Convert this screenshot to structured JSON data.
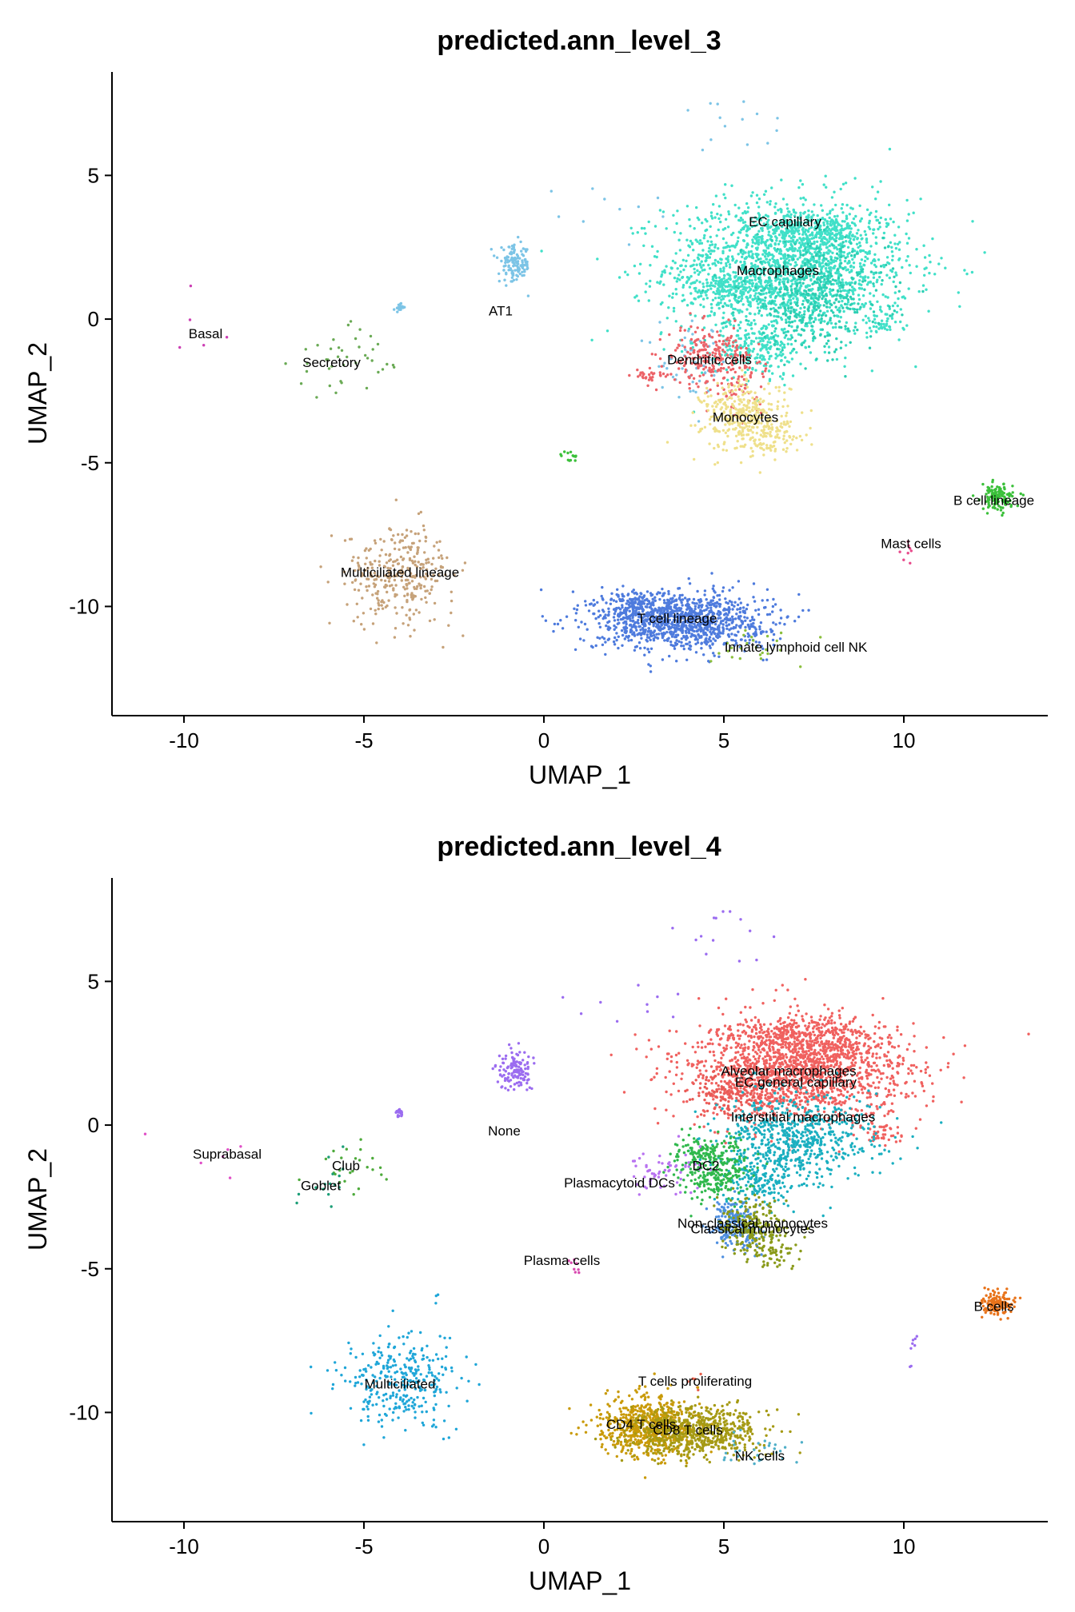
{
  "chart_data": [
    {
      "type": "scatter",
      "title": "predicted.ann_level_3",
      "xlabel": "UMAP_1",
      "ylabel": "UMAP_2",
      "xlim": [
        -12,
        14
      ],
      "ylim": [
        -13.8,
        8.6
      ],
      "x_ticks": [
        -10,
        -5,
        0,
        5,
        10
      ],
      "y_ticks": [
        -10,
        -5,
        0,
        5
      ],
      "grid": false,
      "legend": "none",
      "clusters": [
        {
          "label": "EC capillary",
          "label_x": 6.7,
          "label_y": 3.4,
          "color": "#40E0C8",
          "blobs": [
            {
              "cx": 6.8,
              "cy": 1.8,
              "sx": 1.7,
              "sy": 1.2,
              "n": 1700
            },
            {
              "cx": 7.2,
              "cy": 3.0,
              "sx": 0.8,
              "sy": 0.4,
              "n": 250
            },
            {
              "cx": 5.2,
              "cy": 1.0,
              "sx": 0.7,
              "sy": 0.3,
              "n": 160
            },
            {
              "cx": 6.0,
              "cy": -1.0,
              "sx": 0.6,
              "sy": 0.5,
              "n": 220
            },
            {
              "cx": 9.4,
              "cy": -0.2,
              "sx": 0.3,
              "sy": 0.2,
              "n": 40
            },
            {
              "cx": 8.2,
              "cy": 3.0,
              "sx": 0.35,
              "sy": 0.35,
              "n": 60
            }
          ]
        },
        {
          "label": "Macrophages",
          "label_x": 6.5,
          "label_y": 1.7,
          "color": "#2CCFB3",
          "blobs": [
            {
              "cx": 7.5,
              "cy": 0.8,
              "sx": 1.0,
              "sy": 0.9,
              "n": 450
            }
          ]
        },
        {
          "label": "AT1",
          "label_x": -1.2,
          "label_y": 0.3,
          "color": "#7CC4E6",
          "blobs": [
            {
              "cx": -0.8,
              "cy": 1.9,
              "sx": 0.22,
              "sy": 0.32,
              "n": 130
            },
            {
              "cx": -4.0,
              "cy": 0.4,
              "sx": 0.07,
              "sy": 0.07,
              "n": 18
            },
            {
              "cx": 5.0,
              "cy": 6.8,
              "sx": 1.0,
              "sy": 0.9,
              "n": 14
            },
            {
              "cx": 2.0,
              "cy": 3.9,
              "sx": 1.0,
              "sy": 0.5,
              "n": 10
            },
            {
              "cx": 4.2,
              "cy": -1.5,
              "sx": 0.5,
              "sy": 0.6,
              "n": 60
            }
          ]
        },
        {
          "label": "Dendritic cells",
          "label_x": 4.6,
          "label_y": -1.4,
          "color": "#EC6368",
          "blobs": [
            {
              "cx": 4.6,
              "cy": -1.3,
              "sx": 0.6,
              "sy": 0.5,
              "n": 220
            },
            {
              "cx": 3.0,
              "cy": -2.0,
              "sx": 0.3,
              "sy": 0.1,
              "n": 30
            },
            {
              "cx": 5.5,
              "cy": -2.4,
              "sx": 0.4,
              "sy": 0.5,
              "n": 50
            }
          ]
        },
        {
          "label": "Monocytes",
          "label_x": 5.6,
          "label_y": -3.4,
          "color": "#EFE08B",
          "blobs": [
            {
              "cx": 5.6,
              "cy": -3.4,
              "sx": 0.6,
              "sy": 0.6,
              "n": 380
            },
            {
              "cx": 6.4,
              "cy": -4.2,
              "sx": 0.5,
              "sy": 0.3,
              "n": 60
            }
          ]
        },
        {
          "label": "Basal",
          "label_x": -9.4,
          "label_y": -0.5,
          "color": "#CC3FB4",
          "blobs": [
            {
              "cx": -9.5,
              "cy": -0.5,
              "sx": 0.5,
              "sy": 0.6,
              "n": 5
            }
          ]
        },
        {
          "label": "Secretory",
          "label_x": -5.9,
          "label_y": -1.5,
          "color": "#6AAA55",
          "blobs": [
            {
              "cx": -5.6,
              "cy": -1.5,
              "sx": 0.7,
              "sy": 0.6,
              "n": 40
            }
          ]
        },
        {
          "label": "B cell lineage",
          "label_x": 12.5,
          "label_y": -6.3,
          "color": "#3BC03A",
          "blobs": [
            {
              "cx": 12.6,
              "cy": -6.2,
              "sx": 0.22,
              "sy": 0.22,
              "n": 130
            },
            {
              "cx": 0.7,
              "cy": -4.8,
              "sx": 0.15,
              "sy": 0.1,
              "n": 14
            }
          ]
        },
        {
          "label": "Mast cells",
          "label_x": 10.2,
          "label_y": -7.8,
          "color": "#E84B8C",
          "blobs": [
            {
              "cx": 10.1,
              "cy": -7.9,
              "sx": 0.08,
              "sy": 0.3,
              "n": 8
            }
          ]
        },
        {
          "label": "Multiciliated lineage",
          "label_x": -4.0,
          "label_y": -8.8,
          "color": "#C6A27A",
          "blobs": [
            {
              "cx": -4.0,
              "cy": -8.9,
              "sx": 0.75,
              "sy": 0.85,
              "n": 320
            }
          ]
        },
        {
          "label": "T cell lineage",
          "label_x": 3.7,
          "label_y": -10.4,
          "color": "#4E7BDD",
          "blobs": [
            {
              "cx": 3.8,
              "cy": -10.5,
              "sx": 1.2,
              "sy": 0.5,
              "n": 1100
            },
            {
              "cx": 2.6,
              "cy": -10.0,
              "sx": 0.4,
              "sy": 0.3,
              "n": 150
            }
          ]
        },
        {
          "label": "Innate lymphoid cell NK",
          "label_x": 7.0,
          "label_y": -11.4,
          "color": "#8BBF3C",
          "blobs": [
            {
              "cx": 5.8,
              "cy": -11.4,
              "sx": 0.9,
              "sy": 0.4,
              "n": 25
            }
          ]
        }
      ]
    },
    {
      "type": "scatter",
      "title": "predicted.ann_level_4",
      "xlabel": "UMAP_1",
      "ylabel": "UMAP_2",
      "xlim": [
        -12,
        14
      ],
      "ylim": [
        -13.8,
        8.6
      ],
      "x_ticks": [
        -10,
        -5,
        0,
        5,
        10
      ],
      "y_ticks": [
        -10,
        -5,
        0,
        5
      ],
      "grid": false,
      "legend": "none",
      "clusters": [
        {
          "label": "Alveolar macrophages",
          "label_x": 6.8,
          "label_y": 1.9,
          "color": "#F0615F",
          "blobs": [
            {
              "cx": 7.0,
              "cy": 1.9,
              "sx": 1.6,
              "sy": 0.9,
              "n": 1600
            },
            {
              "cx": 7.0,
              "cy": 3.0,
              "sx": 0.9,
              "sy": 0.4,
              "n": 250
            },
            {
              "cx": 9.4,
              "cy": -0.3,
              "sx": 0.3,
              "sy": 0.2,
              "n": 40
            },
            {
              "cx": 8.4,
              "cy": 2.9,
              "sx": 0.35,
              "sy": 0.35,
              "n": 60
            }
          ]
        },
        {
          "label": "EC general capillary",
          "label_x": 7.0,
          "label_y": 1.5,
          "color": "#E85A55",
          "blobs": [
            {
              "cx": 5.4,
              "cy": 1.2,
              "sx": 0.7,
              "sy": 0.4,
              "n": 150
            }
          ]
        },
        {
          "label": "Interstitial macrophages",
          "label_x": 7.2,
          "label_y": 0.3,
          "color": "#1AAFC0",
          "blobs": [
            {
              "cx": 7.0,
              "cy": -0.5,
              "sx": 1.1,
              "sy": 0.8,
              "n": 650
            },
            {
              "cx": 6.0,
              "cy": -2.0,
              "sx": 0.5,
              "sy": 0.5,
              "n": 150
            }
          ]
        },
        {
          "label": "None",
          "label_x": -1.1,
          "label_y": -0.2,
          "color": "#9B6CF0",
          "blobs": [
            {
              "cx": -0.8,
              "cy": 1.9,
              "sx": 0.22,
              "sy": 0.32,
              "n": 130
            },
            {
              "cx": -4.0,
              "cy": 0.4,
              "sx": 0.07,
              "sy": 0.07,
              "n": 18
            },
            {
              "cx": 5.0,
              "cy": 6.8,
              "sx": 1.0,
              "sy": 0.9,
              "n": 14
            },
            {
              "cx": 2.0,
              "cy": 3.9,
              "sx": 1.0,
              "sy": 0.5,
              "n": 10
            },
            {
              "cx": 10.2,
              "cy": -7.9,
              "sx": 0.1,
              "sy": 0.3,
              "n": 8
            }
          ]
        },
        {
          "label": "DC2",
          "label_x": 4.5,
          "label_y": -1.4,
          "color": "#2FB84C",
          "blobs": [
            {
              "cx": 4.8,
              "cy": -1.6,
              "sx": 0.5,
              "sy": 0.6,
              "n": 260
            },
            {
              "cx": 4.2,
              "cy": -1.0,
              "sx": 0.3,
              "sy": 0.3,
              "n": 60
            }
          ]
        },
        {
          "label": "Plasmacytoid DCs",
          "label_x": 2.1,
          "label_y": -2.0,
          "color": "#B872F0",
          "blobs": [
            {
              "cx": 3.3,
              "cy": -1.6,
              "sx": 0.5,
              "sy": 0.4,
              "n": 60
            }
          ]
        },
        {
          "label": "Non-classical monocytes",
          "label_x": 5.8,
          "label_y": -3.4,
          "color": "#4E8FE0",
          "blobs": [
            {
              "cx": 5.3,
              "cy": -3.5,
              "sx": 0.35,
              "sy": 0.45,
              "n": 220
            }
          ]
        },
        {
          "label": "Classical monocytes",
          "label_x": 5.8,
          "label_y": -3.6,
          "color": "#8A9A1A",
          "blobs": [
            {
              "cx": 5.8,
              "cy": -3.6,
              "sx": 0.45,
              "sy": 0.5,
              "n": 220
            },
            {
              "cx": 6.4,
              "cy": -4.4,
              "sx": 0.4,
              "sy": 0.3,
              "n": 50
            }
          ]
        },
        {
          "label": "Suprabasal",
          "label_x": -8.8,
          "label_y": -1.0,
          "color": "#E04FC7",
          "blobs": [
            {
              "cx": -8.5,
              "cy": -0.8,
              "sx": 1.0,
              "sy": 0.6,
              "n": 6
            }
          ]
        },
        {
          "label": "Club",
          "label_x": -5.5,
          "label_y": -1.4,
          "color": "#4DAA3B",
          "blobs": [
            {
              "cx": -5.4,
              "cy": -1.4,
              "sx": 0.5,
              "sy": 0.5,
              "n": 24
            }
          ]
        },
        {
          "label": "Goblet",
          "label_x": -6.2,
          "label_y": -2.1,
          "color": "#1C9E77",
          "blobs": [
            {
              "cx": -6.1,
              "cy": -1.9,
              "sx": 0.4,
              "sy": 0.5,
              "n": 16
            }
          ]
        },
        {
          "label": "Plasma cells",
          "label_x": 0.5,
          "label_y": -4.7,
          "color": "#D94AB0",
          "blobs": [
            {
              "cx": 0.8,
              "cy": -4.9,
              "sx": 0.2,
              "sy": 0.2,
              "n": 8
            }
          ]
        },
        {
          "label": "B cells",
          "label_x": 12.5,
          "label_y": -6.3,
          "color": "#E8731A",
          "blobs": [
            {
              "cx": 12.6,
              "cy": -6.2,
              "sx": 0.22,
              "sy": 0.22,
              "n": 130
            }
          ]
        },
        {
          "label": "Multiciliated",
          "label_x": -4.0,
          "label_y": -9.0,
          "color": "#1FA6D8",
          "blobs": [
            {
              "cx": -4.0,
              "cy": -8.9,
              "sx": 0.75,
              "sy": 0.85,
              "n": 320
            }
          ]
        },
        {
          "label": "T cells proliferating",
          "label_x": 4.2,
          "label_y": -8.9,
          "color": "#E8604C",
          "blobs": [
            {
              "cx": 4.2,
              "cy": -8.8,
              "sx": 0.2,
              "sy": 0.15,
              "n": 6
            }
          ]
        },
        {
          "label": "CD4 T cells",
          "label_x": 2.7,
          "label_y": -10.4,
          "color": "#C99A08",
          "blobs": [
            {
              "cx": 2.9,
              "cy": -10.5,
              "sx": 0.7,
              "sy": 0.5,
              "n": 700
            }
          ]
        },
        {
          "label": "CD8 T cells",
          "label_x": 4.0,
          "label_y": -10.6,
          "color": "#A59A14",
          "blobs": [
            {
              "cx": 4.3,
              "cy": -10.7,
              "sx": 0.9,
              "sy": 0.45,
              "n": 600
            }
          ]
        },
        {
          "label": "NK cells",
          "label_x": 6.0,
          "label_y": -11.5,
          "color": "#4FAFC8",
          "blobs": [
            {
              "cx": 5.9,
              "cy": -11.4,
              "sx": 0.6,
              "sy": 0.35,
              "n": 30
            }
          ]
        }
      ]
    }
  ]
}
